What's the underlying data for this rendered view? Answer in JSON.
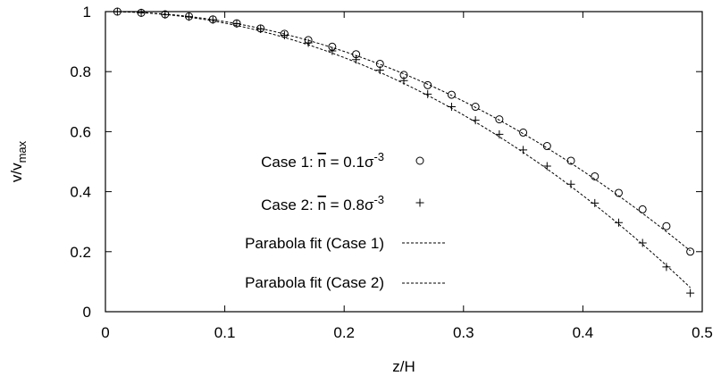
{
  "chart_data": {
    "type": "scatter",
    "title": "",
    "xlabel": "z/H",
    "ylabel": {
      "base": "v/v",
      "sub": "max"
    },
    "xlim": [
      0,
      0.5
    ],
    "ylim": [
      0,
      1
    ],
    "x_ticks": [
      "0",
      "0.1",
      "0.2",
      "0.3",
      "0.4",
      "0.5"
    ],
    "y_ticks": [
      "0",
      "0.2",
      "0.4",
      "0.6",
      "0.8",
      "1"
    ],
    "grid": false,
    "legend_position": "center-left",
    "series": [
      {
        "name": "Case 1: n = 0.1σ",
        "legend": {
          "pre": "Case 1: ",
          "nbar": "n",
          "mid": " = 0.1σ",
          "sup": "-3"
        },
        "marker": "circle",
        "x": [
          0.01,
          0.03,
          0.05,
          0.07,
          0.09,
          0.11,
          0.13,
          0.15,
          0.17,
          0.19,
          0.21,
          0.23,
          0.25,
          0.27,
          0.29,
          0.31,
          0.33,
          0.35,
          0.37,
          0.39,
          0.41,
          0.43,
          0.45,
          0.47,
          0.49
        ],
        "y": [
          1.0,
          0.996,
          0.991,
          0.984,
          0.974,
          0.961,
          0.944,
          0.926,
          0.905,
          0.883,
          0.858,
          0.826,
          0.789,
          0.755,
          0.723,
          0.683,
          0.641,
          0.597,
          0.552,
          0.503,
          0.451,
          0.396,
          0.341,
          0.285,
          0.2
        ]
      },
      {
        "name": "Case 2: n = 0.8σ",
        "legend": {
          "pre": "Case 2: ",
          "nbar": "n",
          "mid": " = 0.8σ",
          "sup": "-3"
        },
        "marker": "plus",
        "x": [
          0.01,
          0.03,
          0.05,
          0.07,
          0.09,
          0.11,
          0.13,
          0.15,
          0.17,
          0.19,
          0.21,
          0.23,
          0.25,
          0.27,
          0.29,
          0.31,
          0.33,
          0.35,
          0.37,
          0.39,
          0.41,
          0.43,
          0.45,
          0.47,
          0.49
        ],
        "y": [
          1.0,
          0.996,
          0.99,
          0.983,
          0.973,
          0.96,
          0.942,
          0.921,
          0.896,
          0.869,
          0.84,
          0.805,
          0.77,
          0.725,
          0.683,
          0.638,
          0.591,
          0.539,
          0.485,
          0.425,
          0.362,
          0.297,
          0.229,
          0.149,
          0.062
        ]
      },
      {
        "name": "Parabola fit (Case 1)",
        "legend": {
          "pre": "Parabola fit (Case 1)"
        },
        "line": "dashed",
        "fit": {
          "a": 1.0,
          "b": 3.32,
          "p": 2.0
        }
      },
      {
        "name": "Parabola fit (Case 2)",
        "legend": {
          "pre": "Parabola fit (Case 2)"
        },
        "line": "dashed",
        "fit": {
          "a": 1.0,
          "b": 3.83,
          "p": 2.0
        }
      }
    ]
  }
}
